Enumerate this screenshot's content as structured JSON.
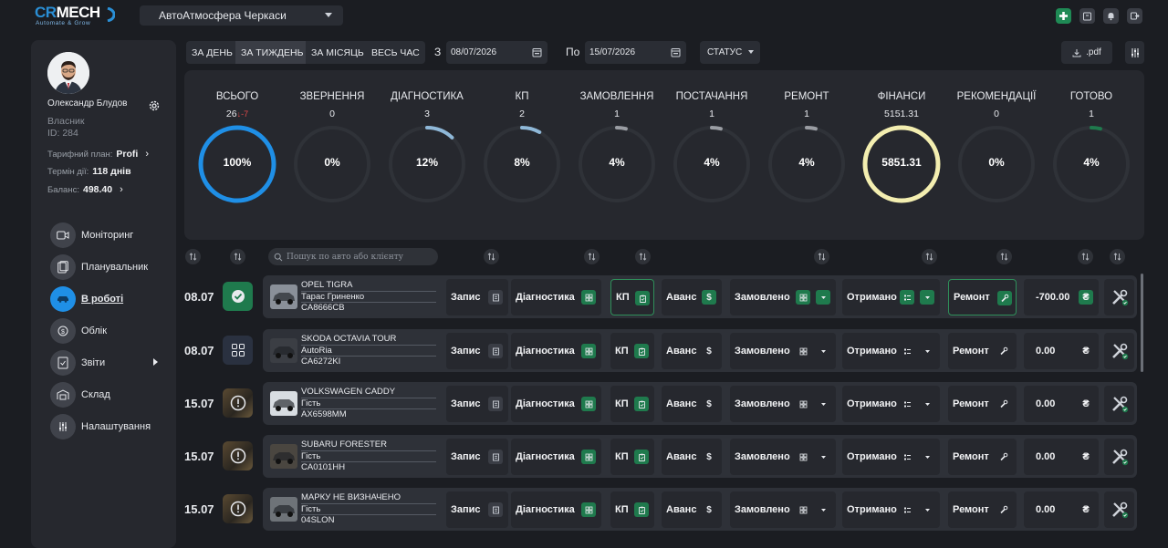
{
  "header": {
    "logo_main": "CRMECH",
    "logo_sub": "Automate & Grow",
    "company": "АвтоАтмосфера Черкаси"
  },
  "user": {
    "name": "Олександр Блудов",
    "role": "Власник",
    "id": "ID: 284",
    "plan_label": "Тарифний план:",
    "plan_value": "Profi",
    "term_label": "Термін дії:",
    "term_value": "118 днів",
    "balance_label": "Баланс:",
    "balance_value": "498.40"
  },
  "nav": [
    {
      "label": "Моніторинг",
      "icon": "video-icon"
    },
    {
      "label": "Планувальник",
      "icon": "calendar-icon"
    },
    {
      "label": "В роботі",
      "icon": "car-icon",
      "active": true
    },
    {
      "label": "Облік",
      "icon": "money-icon"
    },
    {
      "label": "Звіти",
      "icon": "report-icon"
    },
    {
      "label": "Склад",
      "icon": "warehouse-icon"
    },
    {
      "label": "Налаштування",
      "icon": "sliders-icon"
    }
  ],
  "filters": {
    "periods": [
      "ЗА ДЕНЬ",
      "ЗА ТИЖДЕНЬ",
      "ЗА МІСЯЦЬ",
      "ВЕСЬ ЧАС"
    ],
    "active_period": "ЗА ТИЖДЕНЬ",
    "from_label": "З",
    "from_date": "08/07/2026",
    "to_label": "По",
    "to_date": "15/07/2026",
    "status_label": "СТАТУС",
    "pdf_label": ".pdf",
    "search_placeholder": "Пошук по авто або клієнту"
  },
  "stats": [
    {
      "title": "ВСЬОГО",
      "count": "26",
      "delta": "↓-7",
      "pct": "100%",
      "fill": 1.0,
      "color": "#1f8fe6"
    },
    {
      "title": "ЗВЕРНЕННЯ",
      "count": "0",
      "pct": "0%",
      "fill": 0.0,
      "color": "#8fb8d8"
    },
    {
      "title": "ДІАГНОСТИКА",
      "count": "3",
      "pct": "12%",
      "fill": 0.12,
      "color": "#8fb8d8"
    },
    {
      "title": "КП",
      "count": "2",
      "pct": "8%",
      "fill": 0.08,
      "color": "#8fb8d8"
    },
    {
      "title": "ЗАМОВЛЕННЯ",
      "count": "1",
      "pct": "4%",
      "fill": 0.04,
      "color": "#9a9da3"
    },
    {
      "title": "ПОСТАЧАННЯ",
      "count": "1",
      "pct": "4%",
      "fill": 0.04,
      "color": "#9a9da3"
    },
    {
      "title": "РЕМОНТ",
      "count": "1",
      "pct": "4%",
      "fill": 0.04,
      "color": "#9a9da3"
    },
    {
      "title": "ФІНАНСИ",
      "count": "5151.31",
      "pct": "5851.31",
      "fill": 1.0,
      "color": "#f3eeb0"
    },
    {
      "title": "РЕКОМЕНДАЦІЇ",
      "count": "0",
      "pct": "0%",
      "fill": 0.0,
      "color": "#9a9da3"
    },
    {
      "title": "ГОТОВО",
      "count": "1",
      "pct": "4%",
      "fill": 0.04,
      "color": "#1f7a4d"
    }
  ],
  "labels": {
    "zapys": "Запис",
    "diag": "Діагностика",
    "kp": "КП",
    "avans": "Аванс",
    "zamov": "Замовлено",
    "otrym": "Отримано",
    "remont": "Ремонт",
    "currency": "₴"
  },
  "rows": [
    {
      "date": "08.07",
      "status": "done",
      "car": "OPEL TIGRA",
      "client": "Тарас Гриненко",
      "plate": "CA8666CB",
      "amount": "-700.00",
      "active": true
    },
    {
      "date": "08.07",
      "status": "grid",
      "car": "SKODA OCTAVIA TOUR",
      "client": "AutoRia",
      "plate": "CA6272KI",
      "amount": "0.00",
      "active": false
    },
    {
      "date": "15.07",
      "status": "alert",
      "car": "VOLKSWAGEN CADDY",
      "client": "Гість",
      "plate": "AX6598MM",
      "amount": "0.00",
      "active": false
    },
    {
      "date": "15.07",
      "status": "alert",
      "car": "SUBARU FORESTER",
      "client": "Гість",
      "plate": "CA0101HH",
      "amount": "0.00",
      "active": false
    },
    {
      "date": "15.07",
      "status": "alert",
      "car": "МАРКУ НЕ ВИЗНАЧЕНО",
      "client": "Гість",
      "plate": "04SLON",
      "amount": "0.00",
      "active": false
    }
  ]
}
